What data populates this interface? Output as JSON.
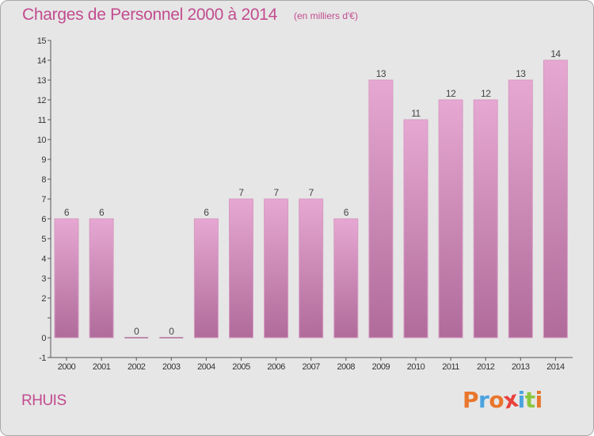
{
  "header": {
    "title": "Charges de Personnel 2000 à 2014",
    "subtitle": "(en milliers d'€)"
  },
  "footer": {
    "commune": "RHUIS",
    "logo": {
      "letters": [
        "P",
        "r",
        "o",
        "x",
        "i",
        "t",
        "i"
      ],
      "colors": [
        "#e8762c",
        "#4aa3df",
        "#e8762c",
        "#e8413c",
        "#4aa3df",
        "#8cc63e",
        "#e8762c"
      ]
    }
  },
  "colors": {
    "bar_top": "#e6a8d2",
    "bar_bottom": "#b06b9a",
    "bar_stroke": "#d79ac2",
    "background": "#e6e6e6"
  },
  "chart_data": {
    "type": "bar",
    "title": "Charges de Personnel 2000 à 2014",
    "subtitle": "(en milliers d'€)",
    "categories": [
      "2000",
      "2001",
      "2002",
      "2003",
      "2004",
      "2005",
      "2006",
      "2007",
      "2008",
      "2009",
      "2010",
      "2011",
      "2012",
      "2013",
      "2014"
    ],
    "values": [
      6,
      6,
      0,
      0,
      6,
      7,
      7,
      7,
      6,
      13,
      11,
      12,
      12,
      13,
      14
    ],
    "ylim": [
      -1,
      15
    ],
    "yticks": [
      -1,
      0,
      1,
      2,
      3,
      4,
      5,
      6,
      7,
      8,
      9,
      10,
      11,
      12,
      13,
      14,
      15
    ],
    "ytick_labels": [
      "-1",
      "0",
      "",
      "2",
      "3",
      "4",
      "5",
      "6",
      "7",
      "8",
      "9",
      "10",
      "11",
      "12",
      "13",
      "14",
      "15"
    ],
    "grid": false,
    "legend": "none"
  }
}
